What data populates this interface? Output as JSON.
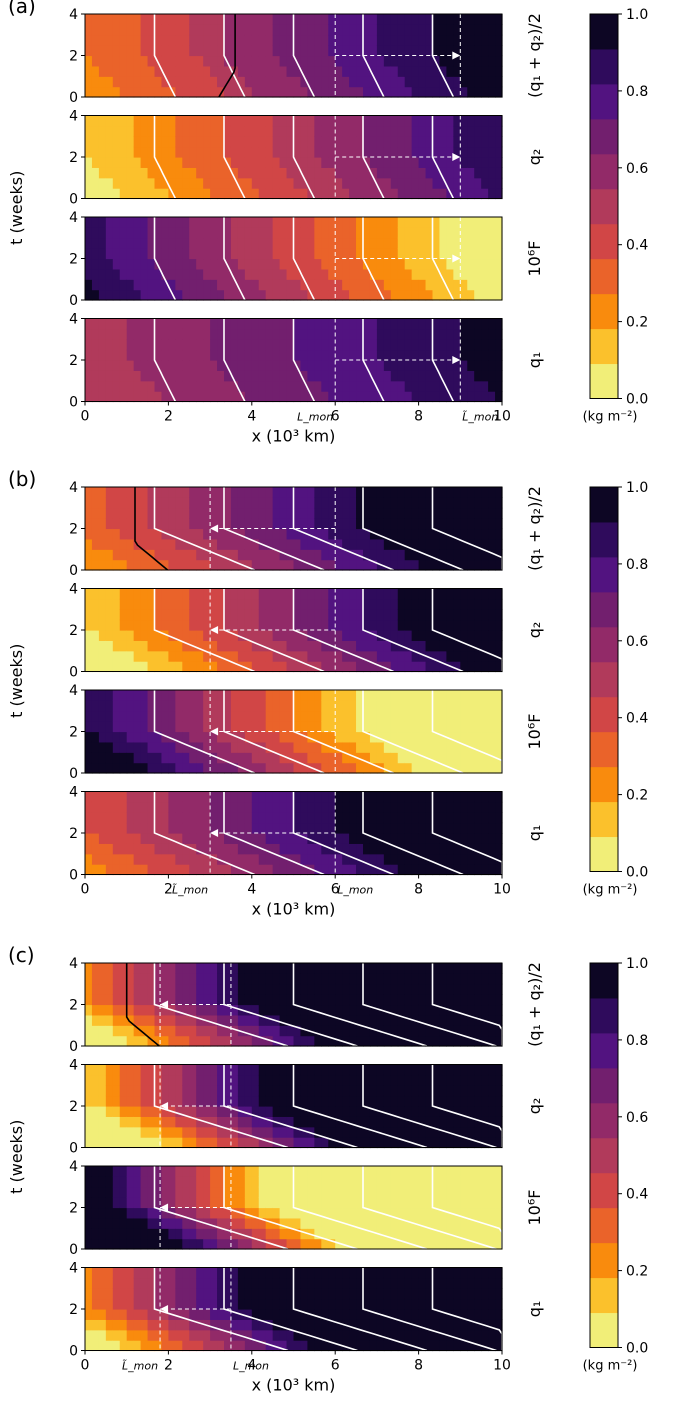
{
  "figure": {
    "panels": [
      {
        "label": "(a)",
        "xlabel": "x (10³ km)",
        "ylabel": "t (weeks)",
        "x_ticks": [
          "0",
          "2",
          "4",
          "6",
          "8",
          "10"
        ],
        "y_ticks": [
          "0",
          "2",
          "4"
        ],
        "marker_labels": [
          "L_mon",
          "L̃_mon"
        ],
        "subplots": [
          "(q₁ + q₂)/2",
          "q₂",
          "10⁶F",
          "q₁"
        ]
      },
      {
        "label": "(b)",
        "xlabel": "x (10³ km)",
        "ylabel": "t (weeks)",
        "x_ticks": [
          "0",
          "2",
          "4",
          "6",
          "8",
          "10"
        ],
        "y_ticks": [
          "0",
          "2",
          "4"
        ],
        "marker_labels": [
          "L̃_mon",
          "L_mon"
        ],
        "subplots": [
          "(q₁ + q₂)/2",
          "q₂",
          "10⁶F",
          "q₁"
        ]
      },
      {
        "label": "(c)",
        "xlabel": "x (10³ km)",
        "ylabel": "t (weeks)",
        "x_ticks": [
          "0",
          "2",
          "4",
          "6",
          "8",
          "10"
        ],
        "y_ticks": [
          "0",
          "2",
          "4"
        ],
        "marker_labels": [
          "L̃_mon",
          "L_mon"
        ],
        "subplots": [
          "(q₁ + q₂)/2",
          "q₂",
          "10⁶F",
          "q₁"
        ]
      }
    ],
    "colorbar": {
      "ticks": [
        "0.0",
        "0.2",
        "0.4",
        "0.6",
        "0.8",
        "1.0"
      ],
      "unit": "(kg m⁻²)",
      "colors": [
        "#f1ee78",
        "#fbc12c",
        "#f98b0d",
        "#ea632a",
        "#d14646",
        "#b13a5b",
        "#922a68",
        "#721f6e",
        "#521380",
        "#2f0b5c",
        "#0d0624"
      ]
    }
  },
  "chart_data": [
    {
      "type": "heatmap",
      "panel": "(a)",
      "subplots": [
        "(q₁ + q₂)/2",
        "q₂",
        "10⁶F",
        "q₁"
      ],
      "xlabel": "x (10³ km)",
      "ylabel": "t (weeks)",
      "xlim": [
        0,
        10
      ],
      "ylim": [
        0,
        4
      ],
      "colorbar_range": [
        0.0,
        1.0
      ],
      "colorbar_levels": 0.1,
      "markers": {
        "L_mon": 6,
        "L̃_mon": 9
      },
      "advance_arrow": {
        "from": 6,
        "to": 9,
        "t": 2
      }
    },
    {
      "type": "heatmap",
      "panel": "(b)",
      "subplots": [
        "(q₁ + q₂)/2",
        "q₂",
        "10⁶F",
        "q₁"
      ],
      "xlabel": "x (10³ km)",
      "ylabel": "t (weeks)",
      "xlim": [
        0,
        10
      ],
      "ylim": [
        0,
        4
      ],
      "colorbar_range": [
        0.0,
        1.0
      ],
      "colorbar_levels": 0.1,
      "markers": {
        "L̃_mon": 3,
        "L_mon": 6
      },
      "advance_arrow": {
        "from": 6,
        "to": 3,
        "t": 2
      }
    },
    {
      "type": "heatmap",
      "panel": "(c)",
      "subplots": [
        "(q₁ + q₂)/2",
        "q₂",
        "10⁶F",
        "q₁"
      ],
      "xlabel": "x (10³ km)",
      "ylabel": "t (weeks)",
      "xlim": [
        0,
        10
      ],
      "ylim": [
        0,
        4
      ],
      "colorbar_range": [
        0.0,
        1.0
      ],
      "colorbar_levels": 0.1,
      "markers": {
        "L̃_mon": 1.8,
        "L_mon": 3.5
      },
      "advance_arrow": {
        "from": 3.5,
        "to": 1.8,
        "t": 2
      }
    }
  ]
}
